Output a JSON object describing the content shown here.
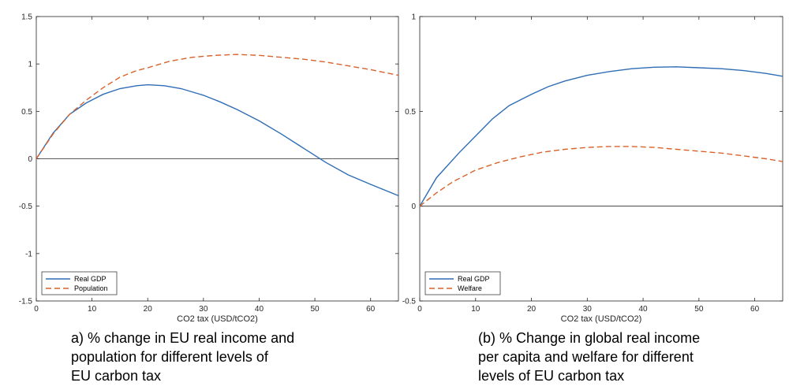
{
  "chart_data": [
    {
      "type": "line",
      "xlabel": "CO2 tax (USD/tCO2)",
      "xlim": [
        0,
        65
      ],
      "ylim": [
        -1.5,
        1.5
      ],
      "x_ticks": [
        0,
        10,
        20,
        30,
        40,
        50,
        60
      ],
      "y_ticks": [
        -1.5,
        -1,
        -0.5,
        0,
        0.5,
        1,
        1.5
      ],
      "x_tick_labels": [
        "0",
        "10",
        "20",
        "30",
        "40",
        "50",
        "60"
      ],
      "y_tick_labels": [
        "-1.5",
        "-1",
        "-0.5",
        "0",
        "0.5",
        "1",
        "1.5"
      ],
      "legend_position": "bottom-left",
      "zero_line": true,
      "grid": false,
      "series": [
        {
          "name": "Real GDP",
          "color": "#2f6db5",
          "style": "solid",
          "x": [
            0,
            3,
            6,
            9,
            12,
            15,
            18,
            20,
            23,
            26,
            30,
            33,
            36,
            40,
            44,
            48,
            52,
            56,
            60,
            65
          ],
          "y": [
            0,
            0.27,
            0.47,
            0.59,
            0.68,
            0.74,
            0.77,
            0.78,
            0.77,
            0.74,
            0.67,
            0.6,
            0.52,
            0.4,
            0.26,
            0.11,
            -0.04,
            -0.17,
            -0.27,
            -0.39
          ]
        },
        {
          "name": "Population",
          "color": "#d9622b",
          "style": "dashed",
          "x": [
            0,
            3,
            6,
            9,
            12,
            15,
            18,
            20,
            24,
            28,
            32,
            36,
            40,
            44,
            48,
            52,
            56,
            60,
            65
          ],
          "y": [
            0,
            0.26,
            0.47,
            0.62,
            0.75,
            0.86,
            0.93,
            0.96,
            1.03,
            1.07,
            1.09,
            1.1,
            1.09,
            1.07,
            1.05,
            1.02,
            0.98,
            0.94,
            0.88
          ]
        }
      ]
    },
    {
      "type": "line",
      "xlabel": "CO2 tax (USD/tCO2)",
      "xlim": [
        0,
        65
      ],
      "ylim": [
        -0.5,
        1
      ],
      "x_ticks": [
        0,
        10,
        20,
        30,
        40,
        50,
        60
      ],
      "y_ticks": [
        -0.5,
        0,
        0.5,
        1
      ],
      "x_tick_labels": [
        "0",
        "10",
        "20",
        "30",
        "40",
        "50",
        "60"
      ],
      "y_tick_labels": [
        "-0.5",
        "0",
        "0.5",
        "1"
      ],
      "legend_position": "bottom-left",
      "zero_line": true,
      "grid": false,
      "series": [
        {
          "name": "Real GDP",
          "color": "#2f6db5",
          "style": "solid",
          "x": [
            0,
            3,
            7,
            10,
            13,
            16,
            20,
            23,
            26,
            30,
            34,
            38,
            42,
            46,
            50,
            54,
            58,
            62,
            65
          ],
          "y": [
            0,
            0.15,
            0.28,
            0.37,
            0.46,
            0.53,
            0.59,
            0.63,
            0.66,
            0.69,
            0.71,
            0.725,
            0.733,
            0.735,
            0.73,
            0.725,
            0.715,
            0.7,
            0.685
          ]
        },
        {
          "name": "Welfare",
          "color": "#d9622b",
          "style": "dashed",
          "x": [
            0,
            3,
            6,
            10,
            14,
            18,
            22,
            26,
            30,
            34,
            38,
            42,
            46,
            50,
            54,
            58,
            62,
            65
          ],
          "y": [
            0,
            0.07,
            0.13,
            0.19,
            0.23,
            0.26,
            0.285,
            0.3,
            0.31,
            0.315,
            0.315,
            0.31,
            0.3,
            0.29,
            0.28,
            0.265,
            0.25,
            0.235
          ]
        }
      ]
    }
  ],
  "captions": {
    "left": [
      "a) % change in EU real income and",
      "population for different levels of",
      "EU carbon tax"
    ],
    "right": [
      "(b) % Change in global real income",
      "per capita and welfare for different",
      "levels of  EU carbon tax"
    ]
  }
}
